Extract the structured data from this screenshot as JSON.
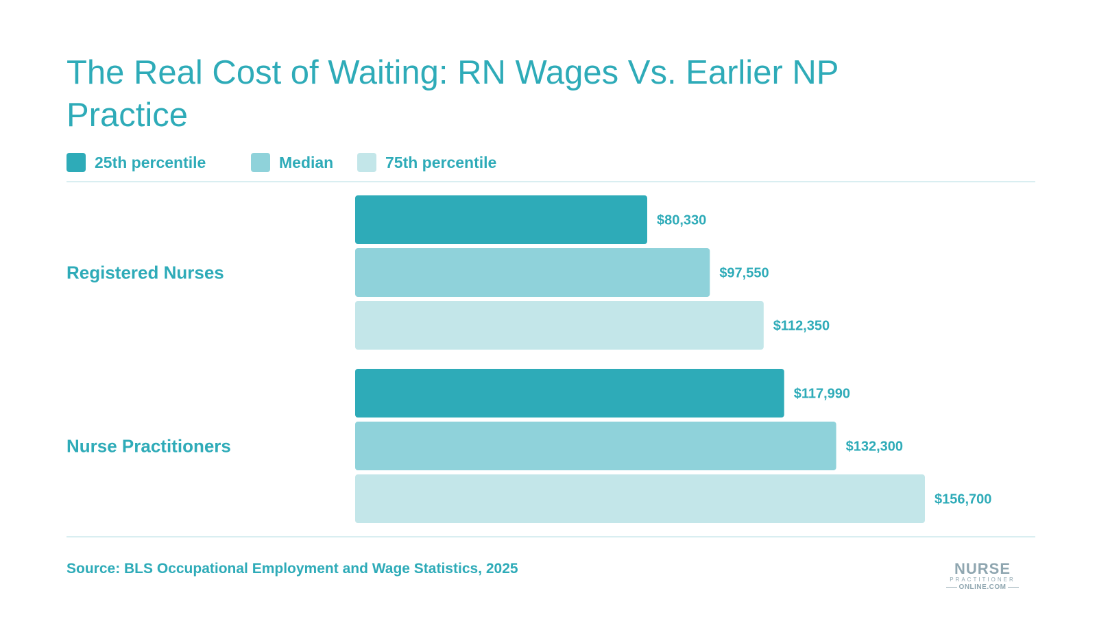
{
  "title": "The Real Cost of Waiting: RN Wages Vs. Earlier NP Practice",
  "legend": [
    {
      "label": "25th percentile",
      "color": "#2eabb8"
    },
    {
      "label": "Median",
      "color": "#8fd2da"
    },
    {
      "label": "75th percentile",
      "color": "#c3e6e9"
    }
  ],
  "source": "Source: BLS Occupational Employment and Wage Statistics, 2025",
  "logo": {
    "line1": "NURSE",
    "line2": "PRACTITIONER",
    "line3": "ONLINE.COM"
  },
  "chart_data": {
    "type": "bar",
    "orientation": "horizontal",
    "title": "The Real Cost of Waiting: RN Wages Vs. Earlier NP Practice",
    "categories": [
      "Registered Nurses",
      "Nurse Practitioners"
    ],
    "series": [
      {
        "name": "25th percentile",
        "color": "#2eabb8",
        "values": [
          80330,
          117990
        ],
        "labels": [
          "$80,330",
          "$117,990"
        ]
      },
      {
        "name": "Median",
        "color": "#8fd2da",
        "values": [
          97550,
          132300
        ],
        "labels": [
          "$97,550",
          "$132,300"
        ]
      },
      {
        "name": "75th percentile",
        "color": "#c3e6e9",
        "values": [
          112350,
          156700
        ],
        "labels": [
          "$112,350",
          "$156,700"
        ]
      }
    ],
    "legend_position": "top-left",
    "grid": false
  }
}
